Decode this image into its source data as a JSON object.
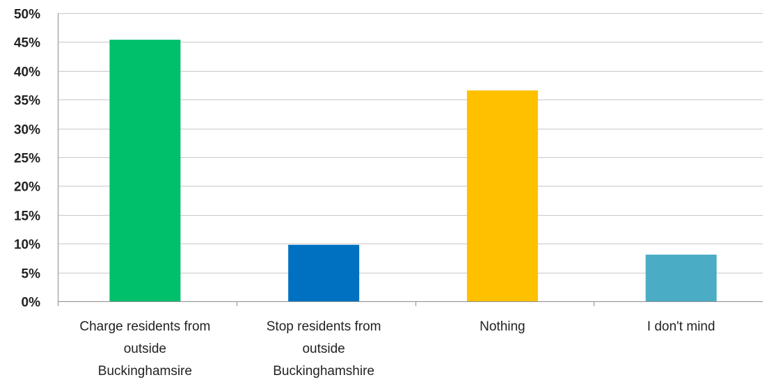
{
  "chart_data": {
    "type": "bar",
    "categories": [
      [
        "Charge residents from",
        "outside",
        "Buckinghamsire"
      ],
      [
        "Stop residents from",
        "outside",
        "Buckinghamshire"
      ],
      [
        "Nothing"
      ],
      [
        "I don't mind"
      ]
    ],
    "values": [
      45.4,
      9.8,
      36.6,
      8.1
    ],
    "colors": [
      "#00c06b",
      "#0070c0",
      "#ffc000",
      "#4bacc6"
    ],
    "title": "",
    "xlabel": "",
    "ylabel": "",
    "ylim": [
      0,
      50
    ],
    "yticks": [
      0,
      5,
      10,
      15,
      20,
      25,
      30,
      35,
      40,
      45,
      50
    ],
    "ytick_suffix": "%",
    "grid": true,
    "legend": "none"
  }
}
